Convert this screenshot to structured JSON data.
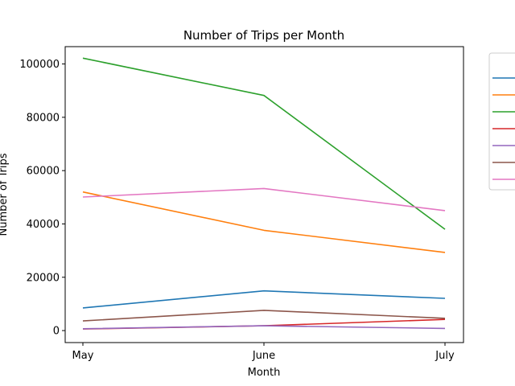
{
  "chart_data": {
    "type": "line",
    "title": "Number of Trips per Month",
    "xlabel": "Month",
    "ylabel": "Number of Trips",
    "categories": [
      "May",
      "June",
      "July"
    ],
    "ylim": [
      -4500,
      106500
    ],
    "yticks": [
      0,
      20000,
      40000,
      60000,
      80000,
      100000
    ],
    "ytick_labels": [
      "0",
      "20000",
      "40000",
      "60000",
      "80000",
      "100000"
    ],
    "grid": false,
    "legend_position": "right, outside plot (clipped)",
    "series": [
      {
        "color": "#1f77b4",
        "values": [
          8500,
          14900,
          12100
        ]
      },
      {
        "color": "#ff7f0e",
        "values": [
          52000,
          37600,
          29300
        ]
      },
      {
        "color": "#2ca02c",
        "values": [
          102200,
          88200,
          38000
        ]
      },
      {
        "color": "#d62728",
        "values": [
          600,
          1800,
          4200
        ]
      },
      {
        "color": "#9467bd",
        "values": [
          700,
          1800,
          800
        ]
      },
      {
        "color": "#8c564b",
        "values": [
          3600,
          7600,
          4600
        ]
      },
      {
        "color": "#e377c2",
        "values": [
          50100,
          53300,
          45000
        ]
      }
    ]
  }
}
